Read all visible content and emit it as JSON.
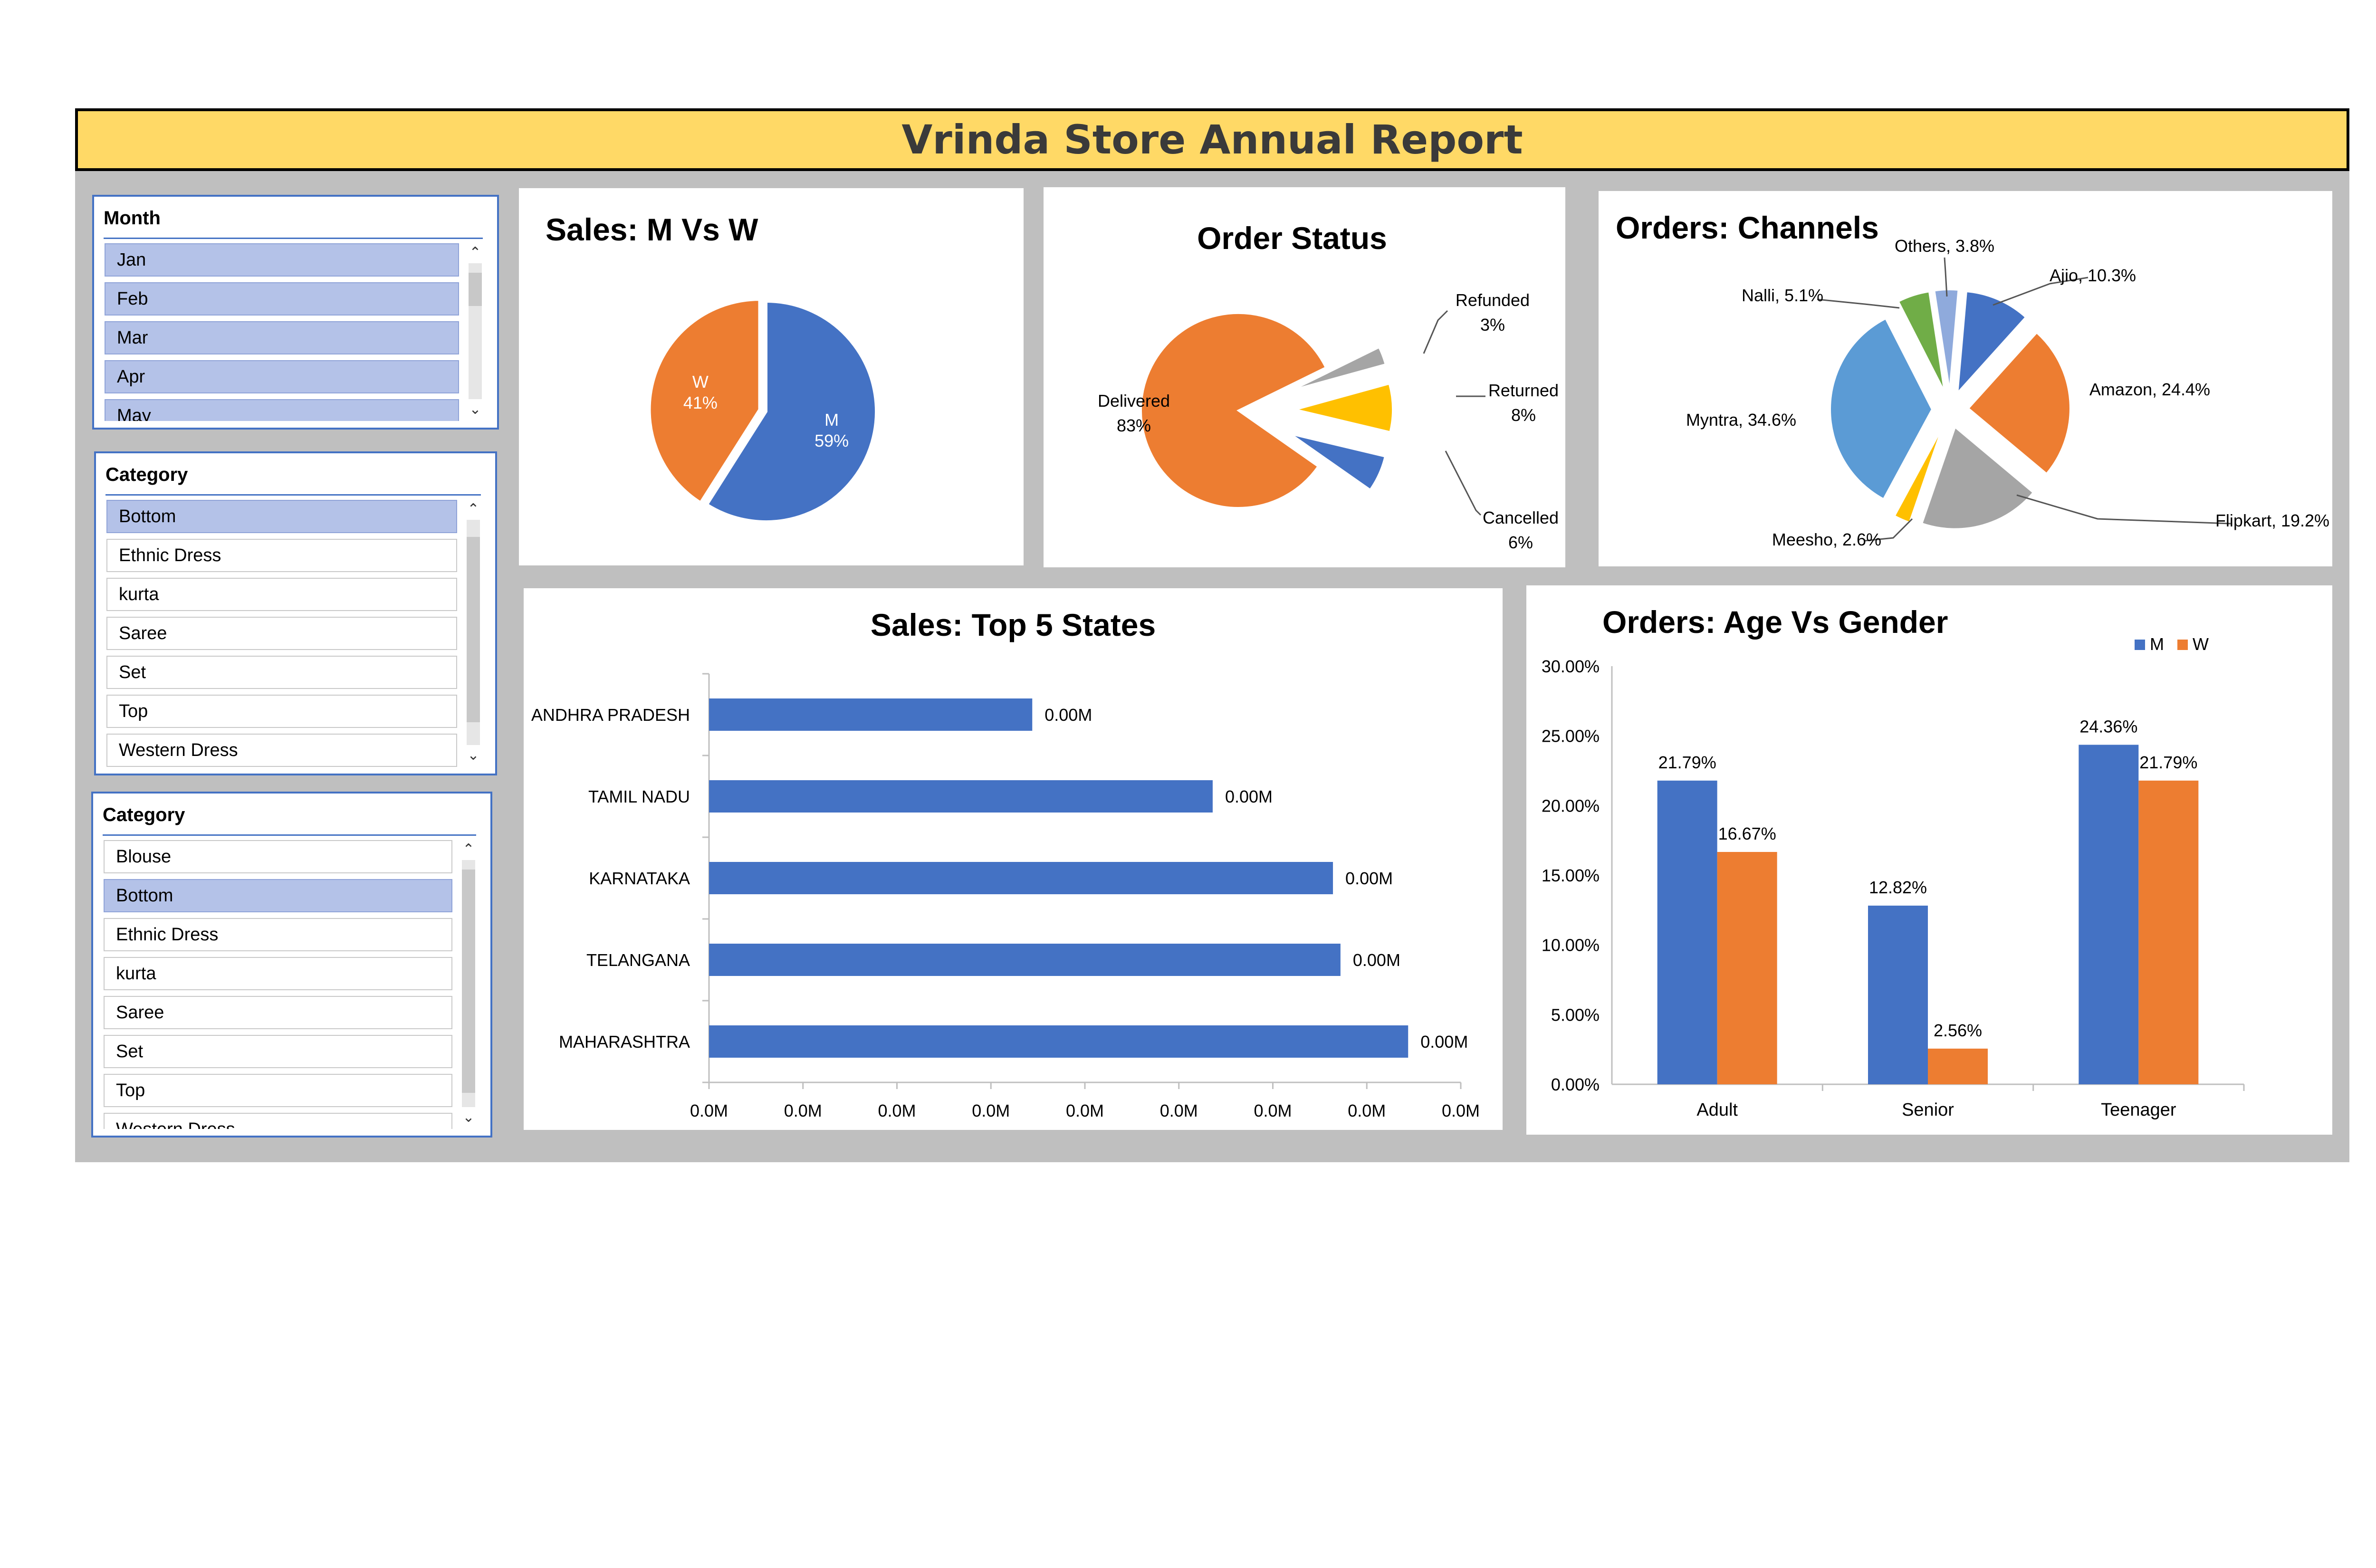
{
  "report": {
    "title": "Vrinda Store Annual Report"
  },
  "slicers": {
    "month": {
      "header": "Month",
      "items": [
        {
          "label": "Jan",
          "selected": true
        },
        {
          "label": "Feb",
          "selected": true
        },
        {
          "label": "Mar",
          "selected": true
        },
        {
          "label": "Apr",
          "selected": true
        },
        {
          "label": "May",
          "selected": true
        }
      ]
    },
    "category1": {
      "header": "Category",
      "items": [
        {
          "label": "Bottom",
          "selected": true
        },
        {
          "label": "Ethnic Dress",
          "selected": false
        },
        {
          "label": "kurta",
          "selected": false
        },
        {
          "label": "Saree",
          "selected": false
        },
        {
          "label": "Set",
          "selected": false
        },
        {
          "label": "Top",
          "selected": false
        },
        {
          "label": "Western Dress",
          "selected": false
        }
      ]
    },
    "category2": {
      "header": "Category",
      "items": [
        {
          "label": "Blouse",
          "selected": false
        },
        {
          "label": "Bottom",
          "selected": true
        },
        {
          "label": "Ethnic Dress",
          "selected": false
        },
        {
          "label": "kurta",
          "selected": false
        },
        {
          "label": "Saree",
          "selected": false
        },
        {
          "label": "Set",
          "selected": false
        },
        {
          "label": "Top",
          "selected": false
        },
        {
          "label": "Western Dress",
          "selected": false
        }
      ]
    }
  },
  "colors": {
    "blue": "#4472c4",
    "orange": "#ed7d31",
    "gray": "#a5a5a5",
    "gold": "#ffc000",
    "green": "#70ad47",
    "lightblue": "#8faadc",
    "steel": "#5b9bd5",
    "darkorange": "#d56b25",
    "title_bg": "#ffd966",
    "dash_bg": "#bfbfbf"
  },
  "chart_data": [
    {
      "id": "sales_mw",
      "type": "pie",
      "title": "Sales: M Vs W",
      "slices": [
        {
          "label": "M",
          "value": 59,
          "display": "59%",
          "color": "#4472c4"
        },
        {
          "label": "W",
          "value": 41,
          "display": "41%",
          "color": "#ed7d31"
        }
      ]
    },
    {
      "id": "order_status",
      "type": "pie",
      "title": "Order Status",
      "slices": [
        {
          "label": "Delivered",
          "value": 83,
          "display": "83%",
          "color": "#ed7d31"
        },
        {
          "label": "Refunded",
          "value": 3,
          "display": "3%",
          "color": "#a5a5a5"
        },
        {
          "label": "Returned",
          "value": 8,
          "display": "8%",
          "color": "#ffc000"
        },
        {
          "label": "Cancelled",
          "value": 6,
          "display": "6%",
          "color": "#4472c4"
        }
      ]
    },
    {
      "id": "orders_channels",
      "type": "pie",
      "title": "Orders: Channels",
      "slices": [
        {
          "label": "Ajio",
          "value": 10.3,
          "display": "Ajio, 10.3%",
          "color": "#4472c4"
        },
        {
          "label": "Amazon",
          "value": 24.4,
          "display": "Amazon, 24.4%",
          "color": "#ed7d31"
        },
        {
          "label": "Flipkart",
          "value": 19.2,
          "display": "Flipkart, 19.2%",
          "color": "#a5a5a5"
        },
        {
          "label": "Meesho",
          "value": 2.6,
          "display": "Meesho, 2.6%",
          "color": "#ffc000"
        },
        {
          "label": "Myntra",
          "value": 34.6,
          "display": "Myntra, 34.6%",
          "color": "#5b9bd5"
        },
        {
          "label": "Nalli",
          "value": 5.1,
          "display": "Nalli, 5.1%",
          "color": "#70ad47"
        },
        {
          "label": "Others",
          "value": 3.8,
          "display": "Others, 3.8%",
          "color": "#8faadc"
        }
      ]
    },
    {
      "id": "top_states",
      "type": "bar",
      "orientation": "horizontal",
      "title": "Sales: Top 5 States",
      "categories": [
        "ANDHRA PRADESH",
        "TAMIL NADU",
        "KARNATAKA",
        "TELANGANA",
        "MAHARASHTRA"
      ],
      "values": [
        0.43,
        0.67,
        0.83,
        0.84,
        0.93
      ],
      "value_labels": [
        "0.00M",
        "0.00M",
        "0.00M",
        "0.00M",
        "0.00M"
      ],
      "xlim": [
        0,
        1
      ],
      "tick_labels": [
        "0.0M",
        "0.0M",
        "0.0M",
        "0.0M",
        "0.0M",
        "0.0M",
        "0.0M",
        "0.0M",
        "0.0M"
      ]
    },
    {
      "id": "age_gender",
      "type": "bar",
      "title": "Orders: Age Vs Gender",
      "categories": [
        "Adult",
        "Senior",
        "Teenager"
      ],
      "series": [
        {
          "name": "M",
          "values": [
            21.79,
            12.82,
            24.36
          ],
          "labels": [
            "21.79%",
            "12.82%",
            "24.36%"
          ],
          "color": "#4472c4"
        },
        {
          "name": "W",
          "values": [
            16.67,
            2.56,
            21.79
          ],
          "labels": [
            "16.67%",
            "2.56%",
            "21.79%"
          ],
          "color": "#ed7d31"
        }
      ],
      "ylim": [
        0,
        30
      ],
      "yticks": [
        "0.00%",
        "5.00%",
        "10.00%",
        "15.00%",
        "20.00%",
        "25.00%",
        "30.00%"
      ],
      "legend": "top-right"
    }
  ]
}
